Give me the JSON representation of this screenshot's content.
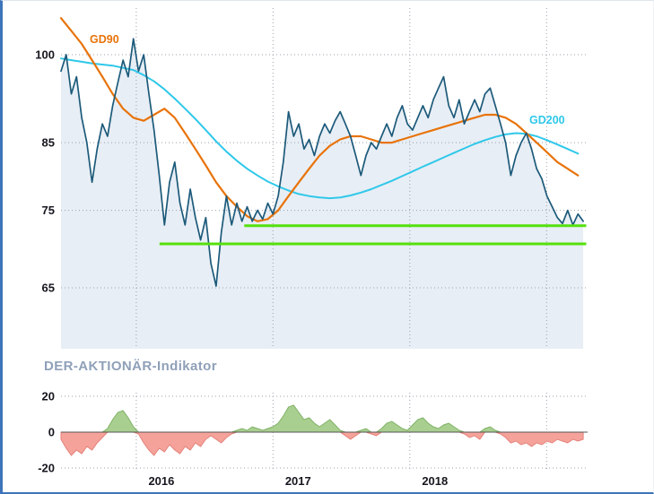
{
  "page": {
    "background": "#eef2f7",
    "panel_background": "#ffffff",
    "accent_border_color": "#3e74b9"
  },
  "chart_data": {
    "type": "line",
    "title": "",
    "x_axis": {
      "range": [
        2015.45,
        2019.3
      ],
      "grid_years": [
        2016,
        2017,
        2018,
        2019
      ],
      "tick_labels": [
        "2016",
        "2017",
        "2018"
      ],
      "grid": true
    },
    "grid_color": "#9ba1ab",
    "axis_text_color": "#16161f",
    "panels": [
      {
        "id": "price",
        "y_scale": "log",
        "y_ticks": [
          100,
          85,
          75,
          65
        ],
        "plot_fill": "#e8eef5",
        "series": [
          {
            "name": "price",
            "style": "area-line",
            "color": "#1c5a7a",
            "fill": "#e8eef5",
            "x_start": 2015.45,
            "x_step": 0.0378,
            "values": [
              97,
              100,
              93,
              96,
              89,
              85,
              79,
              84,
              88,
              86,
              91,
              95,
              99,
              96,
              103,
              97,
              100,
              93,
              87,
              80,
              73,
              79,
              82,
              76,
              73,
              78,
              74,
              71,
              74,
              68,
              65.2,
              72,
              77,
              73,
              76,
              73.5,
              75.5,
              73.5,
              75,
              73.8,
              76,
              74.5,
              77,
              82,
              90,
              86,
              88,
              84,
              85.5,
              83,
              86,
              88,
              86.5,
              88.5,
              90,
              88,
              86,
              83,
              80,
              83,
              85,
              84,
              86,
              88,
              86,
              89,
              91,
              88,
              87,
              89,
              91,
              89,
              92,
              94,
              96,
              91,
              89,
              92,
              88,
              90,
              92,
              90,
              93,
              94,
              91,
              88,
              85,
              80,
              83,
              85,
              86.5,
              84,
              81,
              79.5,
              77,
              75.5,
              74,
              73.2,
              75,
              73,
              74.5,
              73.5
            ]
          },
          {
            "name": "GD90",
            "style": "line",
            "color": "#e8730a",
            "x_start": 2015.45,
            "x_step": 0.0756,
            "values": [
              107,
              104.5,
              102,
              99,
              96,
              93,
              90.5,
              89,
              88.5,
              89.5,
              90.5,
              89,
              86.5,
              84,
              81.5,
              79,
              77,
              75.5,
              74.2,
              73.5,
              73.8,
              75,
              77,
              79,
              81,
              83,
              84.5,
              85.5,
              86,
              86,
              85.5,
              85,
              85,
              85.5,
              86,
              86.5,
              87,
              87.5,
              88,
              88.5,
              89,
              89.5,
              89.5,
              89,
              88,
              86.5,
              85,
              83.5,
              82,
              81,
              80
            ]
          },
          {
            "name": "GD200",
            "style": "line",
            "color": "#2fc8ea",
            "x_start": 2015.45,
            "x_step": 0.0756,
            "values": [
              99.3,
              99,
              98.7,
              98.4,
              98.2,
              98,
              97.6,
              97.2,
              96.3,
              95.2,
              93.8,
              92.2,
              90.5,
              88.8,
              87,
              85.2,
              83.6,
              82.2,
              81,
              80,
              79.1,
              78.4,
              77.8,
              77.3,
              77,
              76.8,
              76.7,
              76.8,
              77.1,
              77.5,
              78,
              78.6,
              79.2,
              79.9,
              80.6,
              81.3,
              82,
              82.7,
              83.4,
              84.1,
              84.8,
              85.4,
              85.9,
              86.3,
              86.5,
              86.4,
              86,
              85.4,
              84.7,
              84,
              83.3
            ]
          }
        ],
        "support_lines": [
          {
            "value": 72.9,
            "x_start": 2016.79,
            "x_end": 2019.29,
            "color": "#55e00d"
          },
          {
            "value": 70.5,
            "x_start": 2016.17,
            "x_end": 2019.29,
            "color": "#55e00d"
          }
        ],
        "series_labels": [
          {
            "text": "GD90",
            "color": "#e8730a"
          },
          {
            "text": "GD200",
            "color": "#2fc8ea"
          }
        ]
      },
      {
        "id": "indicator",
        "title": "DER-AKTIONÄR-Indikator",
        "title_color": "#8fa0b8",
        "y_ticks": [
          20,
          0,
          -20
        ],
        "series": [
          {
            "name": "DER-AKTIONÄR-Indikator",
            "style": "oscillator",
            "positive_color": "#a9cf90",
            "positive_stroke": "#7fb267",
            "negative_color": "#f5a29a",
            "negative_stroke": "#e4837b",
            "x_start": 2015.45,
            "x_step": 0.0378,
            "values": [
              -4,
              -9,
              -13,
              -10,
              -12,
              -8,
              -10,
              -6,
              -3,
              2,
              7,
              11,
              12,
              8,
              3,
              -1,
              -6,
              -10,
              -13,
              -9,
              -11,
              -7,
              -10,
              -12,
              -8,
              -10,
              -6,
              -8,
              -4,
              -2,
              -4,
              -6,
              -3,
              -1,
              1,
              2,
              1,
              3,
              2,
              1,
              2,
              3,
              5,
              9,
              14,
              15,
              11,
              7,
              8,
              5,
              3,
              5,
              7,
              4,
              1,
              -2,
              -4,
              -2,
              1,
              2,
              -1,
              -2,
              2,
              5,
              6,
              4,
              2,
              1,
              4,
              7,
              8,
              5,
              3,
              2,
              4,
              5,
              3,
              1,
              -1,
              -3,
              -2,
              -4,
              2,
              3,
              1,
              -1,
              -3,
              -6,
              -5,
              -7,
              -6,
              -8,
              -6,
              -7,
              -5,
              -6,
              -4,
              -5,
              -6,
              -4,
              -5,
              -4
            ]
          }
        ]
      }
    ]
  }
}
